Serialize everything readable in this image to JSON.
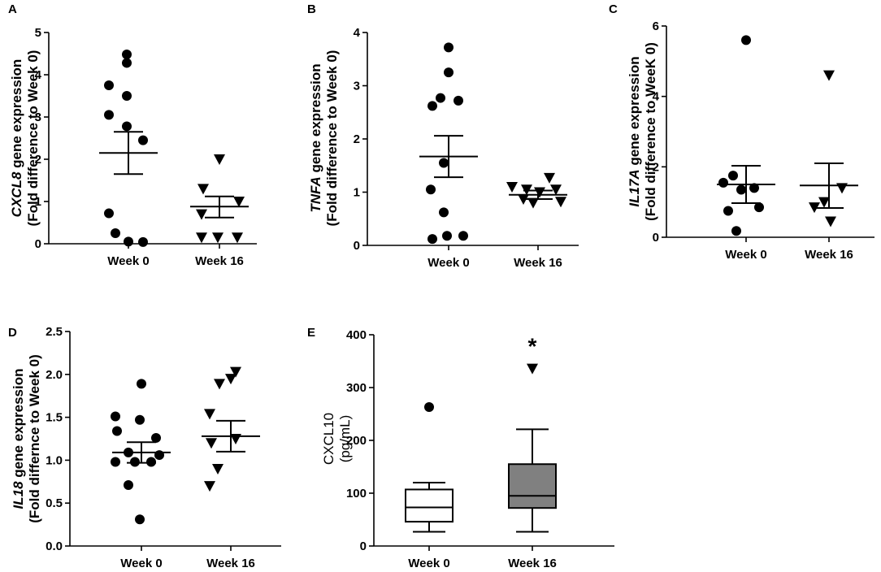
{
  "chart_data": [
    {
      "panel": "A",
      "type": "scatter",
      "ylabel_gene": "CXCL8",
      "ylabel_rest": " gene expression",
      "ylabel_line2": "(Fold difference to Week 0)",
      "categories": [
        "Week 0",
        "Week 16"
      ],
      "ylim": [
        0,
        5
      ],
      "yticks": [
        "0",
        "1",
        "2",
        "3",
        "4",
        "5"
      ],
      "series": [
        {
          "name": "Week 0",
          "marker": "circle",
          "points": [
            4.48,
            4.28,
            3.75,
            3.5,
            3.05,
            2.78,
            2.45,
            0.72,
            0.25,
            0.05,
            0.04
          ],
          "mean": 2.15,
          "sem_low": 1.65,
          "sem_high": 2.65
        },
        {
          "name": "Week 16",
          "marker": "triangle",
          "points": [
            2.0,
            1.3,
            1.0,
            0.7,
            0.15,
            0.15,
            0.15
          ],
          "mean": 0.88,
          "sem_low": 0.62,
          "sem_high": 1.12
        }
      ]
    },
    {
      "panel": "B",
      "type": "scatter",
      "ylabel_gene": "TNFA",
      "ylabel_rest": " gene expression",
      "ylabel_line2": "(Fold difference to Week 0)",
      "categories": [
        "Week 0",
        "Week 16"
      ],
      "ylim": [
        0,
        4
      ],
      "yticks": [
        "0",
        "1",
        "2",
        "3",
        "4"
      ],
      "series": [
        {
          "name": "Week 0",
          "marker": "circle",
          "points": [
            3.72,
            3.25,
            2.77,
            2.72,
            2.62,
            1.55,
            1.05,
            0.62,
            0.18,
            0.12,
            0.18
          ],
          "mean": 1.67,
          "sem_low": 1.28,
          "sem_high": 2.06
        },
        {
          "name": "Week 16",
          "marker": "triangle",
          "points": [
            1.27,
            1.1,
            1.05,
            1.05,
            1.0,
            0.87,
            0.82,
            0.8
          ],
          "mean": 0.95,
          "sem_low": 0.87,
          "sem_high": 1.03
        }
      ]
    },
    {
      "panel": "C",
      "type": "scatter",
      "ylabel_gene": "IL17A",
      "ylabel_rest": " gene expression",
      "ylabel_line2": "(Fold difference to WeeK 0)",
      "categories": [
        "Week 0",
        "Week 16"
      ],
      "ylim": [
        0,
        6
      ],
      "yticks": [
        "0",
        "2",
        "4",
        "6"
      ],
      "series": [
        {
          "name": "Week 0",
          "marker": "circle",
          "points": [
            5.6,
            1.75,
            1.55,
            1.4,
            1.35,
            0.85,
            0.75,
            0.18
          ],
          "mean": 1.5,
          "sem_low": 0.97,
          "sem_high": 2.03
        },
        {
          "name": "Week 16",
          "marker": "triangle",
          "points": [
            4.6,
            1.4,
            1.0,
            0.85,
            0.45
          ],
          "mean": 1.47,
          "sem_low": 0.83,
          "sem_high": 2.1
        }
      ]
    },
    {
      "panel": "D",
      "type": "scatter",
      "ylabel_gene": "IL18",
      "ylabel_rest": " gene expression",
      "ylabel_line2": "(Fold differnce to Week 0)",
      "categories": [
        "Week 0",
        "Week 16"
      ],
      "ylim": [
        0,
        2.5
      ],
      "yticks": [
        "0.0",
        "0.5",
        "1.0",
        "1.5",
        "2.0",
        "2.5"
      ],
      "series": [
        {
          "name": "Week 0",
          "marker": "circle",
          "points": [
            1.89,
            1.51,
            1.47,
            1.34,
            1.26,
            1.09,
            1.06,
            0.98,
            0.98,
            0.98,
            0.71,
            0.31
          ],
          "mean": 1.09,
          "sem_low": 0.97,
          "sem_high": 1.21
        },
        {
          "name": "Week 16",
          "marker": "triangle",
          "points": [
            2.03,
            1.95,
            1.89,
            1.54,
            1.25,
            1.2,
            0.9,
            0.7
          ],
          "mean": 1.28,
          "sem_low": 1.1,
          "sem_high": 1.46
        }
      ]
    },
    {
      "panel": "E",
      "type": "box",
      "ylabel": "CXCL10",
      "ylabel_line2": "(pg/mL)",
      "categories": [
        "Week 0",
        "Week 16"
      ],
      "ylim": [
        0,
        400
      ],
      "yticks": [
        "0",
        "100",
        "200",
        "300",
        "400"
      ],
      "significance": "*",
      "boxes": [
        {
          "name": "Week 0",
          "whisker_low": 27,
          "q1": 46,
          "median": 73,
          "q3": 107,
          "whisker_high": 120,
          "outliers": [
            263
          ],
          "outlier_marker": "circle",
          "fill": "#ffffff"
        },
        {
          "name": "Week 16",
          "whisker_low": 27,
          "q1": 72,
          "median": 95,
          "q3": 155,
          "whisker_high": 221,
          "outliers": [
            336
          ],
          "outlier_marker": "triangle",
          "fill": "#808080"
        }
      ]
    }
  ]
}
